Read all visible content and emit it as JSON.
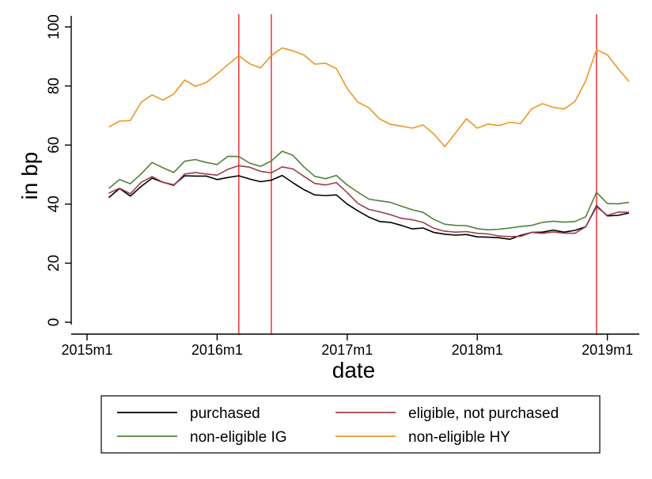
{
  "chart_data": {
    "type": "line",
    "title": "",
    "xlabel": "date",
    "ylabel": "in bp",
    "ylim": [
      0,
      100
    ],
    "y_ticks": [
      0,
      20,
      40,
      60,
      80,
      100
    ],
    "x_ticks": [
      "2015m1",
      "2016m1",
      "2017m1",
      "2018m1",
      "2019m1"
    ],
    "xlim": [
      "2015m1",
      "2019m3"
    ],
    "x_start": "2015m3",
    "grid": false,
    "legend_position": "bottom",
    "vertical_lines": [
      "2016m3",
      "2016m6",
      "2018m12"
    ],
    "vertical_line_color": "#e8262b",
    "series": [
      {
        "name": "purchased",
        "color": "#000000",
        "values": [
          42.2,
          45.3,
          42.7,
          46.0,
          48.8,
          47.4,
          46.5,
          49.6,
          49.5,
          49.5,
          48.3,
          49.0,
          49.6,
          48.5,
          47.6,
          48.1,
          49.7,
          47.2,
          44.9,
          43.1,
          42.9,
          43.1,
          40.0,
          37.7,
          35.6,
          34.1,
          33.8,
          32.8,
          31.6,
          31.9,
          30.4,
          29.8,
          29.5,
          29.7,
          28.9,
          28.8,
          28.6,
          28.1,
          29.4,
          30.4,
          30.5,
          31.2,
          30.5,
          31.1,
          32.3,
          39.4,
          36.0,
          36.2,
          37.0
        ]
      },
      {
        "name": "eligible, not purchased",
        "color": "#9c3d4a",
        "values": [
          43.7,
          45.4,
          43.5,
          47.4,
          49.3,
          47.4,
          46.3,
          50.2,
          50.7,
          50.2,
          49.8,
          51.8,
          53.0,
          52.5,
          51.1,
          50.6,
          52.6,
          51.9,
          49.4,
          47.0,
          46.5,
          47.3,
          43.9,
          40.2,
          38.2,
          37.4,
          36.4,
          35.2,
          34.7,
          33.8,
          31.8,
          30.8,
          30.5,
          30.7,
          30.1,
          29.9,
          29.2,
          29.0,
          29.1,
          30.4,
          30.1,
          30.6,
          30.2,
          30.1,
          32.3,
          39.1,
          36.2,
          37.3,
          37.2
        ]
      },
      {
        "name": "non-eligible IG",
        "color": "#53803a",
        "values": [
          45.3,
          48.3,
          46.9,
          50.3,
          54.1,
          52.3,
          50.7,
          54.5,
          55.1,
          54.1,
          53.4,
          56.2,
          56.1,
          53.9,
          52.8,
          54.6,
          57.9,
          56.5,
          52.6,
          49.4,
          48.6,
          49.7,
          46.5,
          44.0,
          41.7,
          41.1,
          40.6,
          39.3,
          38.1,
          37.2,
          34.8,
          33.2,
          32.8,
          32.7,
          31.7,
          31.3,
          31.5,
          31.9,
          32.4,
          32.8,
          33.8,
          34.2,
          33.9,
          34.1,
          35.7,
          44.0,
          40.2,
          40.1,
          40.6
        ]
      },
      {
        "name": "non-eligible HY",
        "color": "#ee9624",
        "values": [
          66.1,
          68.1,
          68.3,
          74.5,
          77.0,
          75.2,
          77.3,
          82.0,
          79.9,
          81.2,
          84.1,
          87.2,
          90.3,
          87.5,
          86.1,
          90.3,
          92.9,
          91.9,
          90.5,
          87.4,
          87.7,
          85.9,
          79.1,
          74.5,
          72.6,
          68.8,
          67.0,
          66.4,
          65.7,
          66.8,
          63.7,
          59.5,
          64.1,
          68.9,
          65.7,
          67.1,
          66.6,
          67.7,
          67.3,
          72.2,
          74.0,
          72.8,
          72.2,
          74.7,
          81.7,
          92.3,
          90.6,
          85.8,
          81.5
        ]
      }
    ]
  }
}
